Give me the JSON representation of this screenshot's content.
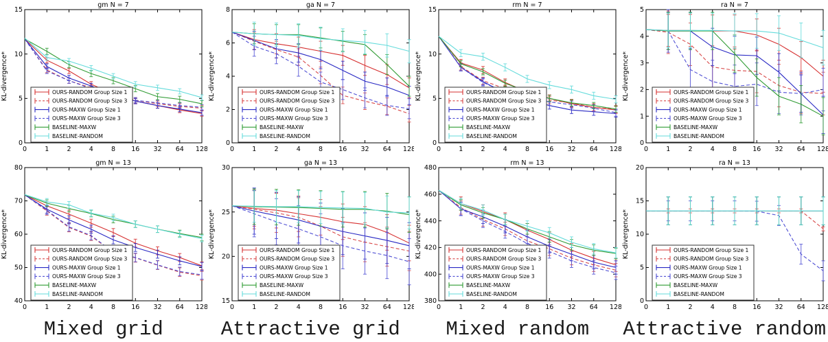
{
  "figure": {
    "ylabel": "KL-divergence*",
    "background": "#ffffff",
    "axis_color": "#000000"
  },
  "legend": {
    "position": "lower-left-inside",
    "entries": [
      {
        "label": "OURS-RANDOM Group Size 1",
        "color": "#d62f2f",
        "dash": false
      },
      {
        "label": "OURS-RANDOM Group Size 3",
        "color": "#d84848",
        "dash": true
      },
      {
        "label": "OURS-MAXW Group Size 1",
        "color": "#2727c3",
        "dash": false
      },
      {
        "label": "OURS-MAXW Group Size 3",
        "color": "#4f4fd4",
        "dash": true
      },
      {
        "label": "BASELINE-MAXW",
        "color": "#2f9b33",
        "dash": false
      },
      {
        "label": "BASELINE-RANDOM",
        "color": "#63dbdb",
        "dash": false
      }
    ]
  },
  "captions": [
    "Mixed grid",
    "Attractive grid",
    "Mixed random",
    "Attractive random"
  ],
  "chart_data": [
    {
      "id": "gm-n7",
      "type": "line",
      "title": "gm N = 7",
      "xlabel": "",
      "ylabel": "KL-divergence*",
      "x": [
        "0",
        "1",
        "2",
        "4",
        "8",
        "16",
        "32",
        "64",
        "128"
      ],
      "ylim": [
        0,
        15
      ],
      "yticks": [
        0,
        5,
        10,
        15
      ],
      "grid": false,
      "series": [
        {
          "name": "OURS-RANDOM Group Size 1",
          "err": 0.3,
          "values": [
            11.7,
            9.3,
            8.1,
            6.6,
            5.5,
            4.7,
            4.2,
            3.7,
            3.3
          ]
        },
        {
          "name": "OURS-RANDOM Group Size 3",
          "err": 0.3,
          "values": [
            11.7,
            8.2,
            7.0,
            6.2,
            5.4,
            4.8,
            4.4,
            4.1,
            3.9
          ]
        },
        {
          "name": "OURS-MAXW Group Size 1",
          "err": 0.3,
          "values": [
            11.7,
            8.6,
            7.3,
            6.4,
            5.5,
            4.7,
            4.2,
            3.8,
            3.4
          ]
        },
        {
          "name": "OURS-MAXW Group Size 3",
          "err": 0.3,
          "values": [
            11.7,
            8.1,
            7.0,
            6.1,
            5.4,
            4.8,
            4.5,
            4.2,
            4.0
          ]
        },
        {
          "name": "BASELINE-MAXW",
          "err": 0.35,
          "values": [
            11.7,
            10.3,
            8.8,
            7.8,
            7.0,
            6.1,
            5.2,
            4.9,
            4.4
          ]
        },
        {
          "name": "BASELINE-RANDOM",
          "err": 0.3,
          "values": [
            11.8,
            9.6,
            9.2,
            8.4,
            7.5,
            6.6,
            6.2,
            5.8,
            5.1
          ]
        }
      ]
    },
    {
      "id": "ga-n7",
      "type": "line",
      "title": "ga N = 7",
      "xlabel": "",
      "ylabel": "KL-divergence*",
      "x": [
        "0",
        "1",
        "2",
        "4",
        "8",
        "16",
        "32",
        "64",
        "128"
      ],
      "ylim": [
        0,
        8
      ],
      "yticks": [
        0,
        2,
        4,
        6,
        8
      ],
      "grid": false,
      "series": [
        {
          "name": "OURS-RANDOM Group Size 1",
          "err": 0.6,
          "values": [
            6.65,
            6.2,
            5.95,
            5.75,
            5.5,
            5.25,
            4.65,
            4.1,
            3.3
          ]
        },
        {
          "name": "OURS-RANDOM Group Size 3",
          "err": 0.5,
          "values": [
            6.65,
            6.1,
            5.6,
            5.15,
            4.05,
            2.85,
            2.5,
            2.2,
            1.75
          ]
        },
        {
          "name": "OURS-MAXW Group Size 1",
          "err": 0.55,
          "values": [
            6.65,
            6.15,
            5.65,
            5.4,
            5.0,
            4.35,
            3.7,
            3.35,
            2.85
          ]
        },
        {
          "name": "OURS-MAXW Group Size 3",
          "err": 0.6,
          "values": [
            6.65,
            5.8,
            5.35,
            4.6,
            3.65,
            3.2,
            2.7,
            2.25,
            2.05
          ]
        },
        {
          "name": "BASELINE-MAXW",
          "err": 0.6,
          "values": [
            6.65,
            6.55,
            6.5,
            6.5,
            6.3,
            6.1,
            5.9,
            4.7,
            3.4
          ]
        },
        {
          "name": "BASELINE-RANDOM",
          "err": 0.7,
          "values": [
            6.65,
            6.55,
            6.5,
            6.45,
            6.25,
            6.15,
            6.05,
            5.85,
            5.5
          ]
        }
      ]
    },
    {
      "id": "rm-n7",
      "type": "line",
      "title": "rm N = 7",
      "xlabel": "",
      "ylabel": "KL-divergence*",
      "x": [
        "0",
        "1",
        "2",
        "4",
        "8",
        "16",
        "32",
        "64",
        "128"
      ],
      "ylim": [
        0,
        15
      ],
      "yticks": [
        0,
        5,
        10,
        15
      ],
      "grid": false,
      "series": [
        {
          "name": "OURS-RANDOM Group Size 1",
          "err": 0.4,
          "values": [
            12.0,
            9.0,
            8.2,
            6.8,
            5.7,
            5.0,
            4.4,
            4.0,
            3.7
          ]
        },
        {
          "name": "OURS-RANDOM Group Size 3",
          "err": 0.4,
          "values": [
            12.0,
            8.6,
            7.0,
            6.1,
            5.5,
            4.8,
            4.5,
            4.0,
            3.8
          ]
        },
        {
          "name": "OURS-MAXW Group Size 1",
          "err": 0.4,
          "values": [
            12.0,
            8.5,
            6.9,
            5.6,
            4.9,
            4.2,
            3.7,
            3.5,
            3.3
          ]
        },
        {
          "name": "OURS-MAXW Group Size 3",
          "err": 0.4,
          "values": [
            12.0,
            8.5,
            6.8,
            5.7,
            5.3,
            4.6,
            4.3,
            3.9,
            3.4
          ]
        },
        {
          "name": "BASELINE-MAXW",
          "err": 0.35,
          "values": [
            12.0,
            8.9,
            8.0,
            6.7,
            5.8,
            5.0,
            4.5,
            4.2,
            3.8
          ]
        },
        {
          "name": "BASELINE-RANDOM",
          "err": 0.4,
          "values": [
            12.0,
            10.1,
            9.7,
            8.5,
            7.2,
            6.5,
            6.0,
            5.3,
            4.9
          ]
        }
      ]
    },
    {
      "id": "ra-n7",
      "type": "line",
      "title": "ra N = 7",
      "xlabel": "",
      "ylabel": "KL-divergence*",
      "x": [
        "0",
        "1",
        "2",
        "4",
        "8",
        "16",
        "32",
        "64",
        "128"
      ],
      "ylim": [
        0,
        5
      ],
      "yticks": [
        0,
        1,
        2,
        3,
        4,
        5
      ],
      "grid": false,
      "series": [
        {
          "name": "OURS-RANDOM Group Size 1",
          "err": 0.6,
          "values": [
            4.25,
            4.22,
            4.22,
            4.2,
            4.2,
            4.05,
            3.7,
            3.2,
            2.5
          ]
        },
        {
          "name": "OURS-RANDOM Group Size 3",
          "err": 0.8,
          "values": [
            4.25,
            4.15,
            3.7,
            2.85,
            2.72,
            2.68,
            2.15,
            1.9,
            1.85
          ]
        },
        {
          "name": "OURS-MAXW Group Size 1",
          "err": 0.7,
          "values": [
            4.25,
            4.2,
            4.2,
            3.6,
            3.3,
            3.27,
            2.65,
            1.85,
            1.05
          ]
        },
        {
          "name": "OURS-MAXW Group Size 3",
          "err": 0.8,
          "values": [
            4.25,
            4.2,
            2.75,
            2.3,
            2.12,
            2.2,
            1.9,
            1.85,
            2.0
          ]
        },
        {
          "name": "BASELINE-MAXW",
          "err": 0.7,
          "values": [
            4.25,
            4.2,
            4.2,
            4.2,
            3.35,
            2.45,
            1.75,
            1.45,
            1.0
          ]
        },
        {
          "name": "BASELINE-RANDOM",
          "err": 0.65,
          "values": [
            4.25,
            4.22,
            4.22,
            4.22,
            4.2,
            4.2,
            4.12,
            3.85,
            3.57
          ]
        }
      ]
    },
    {
      "id": "gm-n13",
      "type": "line",
      "title": "gm N = 13",
      "xlabel": "",
      "ylabel": "KL-divergence*",
      "x": [
        "0",
        "1",
        "2",
        "4",
        "8",
        "16",
        "32",
        "64",
        "128"
      ],
      "ylim": [
        40,
        80
      ],
      "yticks": [
        40,
        50,
        60,
        70,
        80
      ],
      "grid": false,
      "series": [
        {
          "name": "OURS-RANDOM Group Size 1",
          "err": 1.2,
          "values": [
            71.8,
            68.5,
            66.0,
            63.3,
            60.5,
            57.3,
            55.0,
            53.0,
            50.5
          ]
        },
        {
          "name": "OURS-RANDOM Group Size 3",
          "err": 1.3,
          "values": [
            71.8,
            67.0,
            62.0,
            59.4,
            54.5,
            52.9,
            50.7,
            48.6,
            47.5
          ]
        },
        {
          "name": "OURS-MAXW Group Size 1",
          "err": 1.2,
          "values": [
            71.8,
            67.5,
            64.3,
            61.5,
            58.3,
            56.0,
            54.0,
            52.0,
            50.3
          ]
        },
        {
          "name": "OURS-MAXW Group Size 3",
          "err": 1.3,
          "values": [
            71.8,
            67.2,
            62.2,
            59.6,
            54.6,
            53.0,
            50.8,
            48.8,
            47.8
          ]
        },
        {
          "name": "BASELINE-MAXW",
          "err": 1.0,
          "values": [
            71.8,
            69.3,
            67.7,
            66.2,
            64.4,
            63.0,
            61.5,
            60.2,
            59.0
          ]
        },
        {
          "name": "BASELINE-RANDOM",
          "err": 1.0,
          "values": [
            71.9,
            69.7,
            68.8,
            66.3,
            65.0,
            63.0,
            61.5,
            60.0,
            58.7
          ]
        }
      ]
    },
    {
      "id": "ga-n13",
      "type": "line",
      "title": "ga N = 13",
      "xlabel": "",
      "ylabel": "KL-divergence*",
      "x": [
        "0",
        "1",
        "2",
        "4",
        "8",
        "16",
        "32",
        "64",
        "128"
      ],
      "ylim": [
        15,
        30
      ],
      "yticks": [
        15,
        20,
        25,
        30
      ],
      "grid": false,
      "series": [
        {
          "name": "OURS-RANDOM Group Size 1",
          "err": 2.0,
          "values": [
            25.7,
            25.4,
            25.2,
            24.8,
            24.4,
            23.9,
            23.6,
            22.7,
            21.5
          ]
        },
        {
          "name": "OURS-RANDOM Group Size 3",
          "err": 2.2,
          "values": [
            25.7,
            25.3,
            24.9,
            24.4,
            23.4,
            22.2,
            21.6,
            21.1,
            20.6
          ]
        },
        {
          "name": "OURS-MAXW Group Size 1",
          "err": 2.6,
          "values": [
            25.7,
            25.1,
            24.6,
            24.1,
            23.4,
            22.8,
            22.3,
            21.8,
            21.2
          ]
        },
        {
          "name": "OURS-MAXW Group Size 3",
          "err": 2.6,
          "values": [
            25.7,
            24.8,
            23.9,
            23.1,
            22.2,
            21.2,
            20.6,
            20.1,
            19.4
          ]
        },
        {
          "name": "BASELINE-MAXW",
          "err": 2.0,
          "values": [
            25.7,
            25.6,
            25.55,
            25.5,
            25.4,
            25.3,
            25.3,
            25.1,
            24.7
          ]
        },
        {
          "name": "BASELINE-RANDOM",
          "err": 1.8,
          "values": [
            25.7,
            25.65,
            25.6,
            25.6,
            25.5,
            25.45,
            25.4,
            25.0,
            24.9
          ]
        }
      ]
    },
    {
      "id": "rm-n13",
      "type": "line",
      "title": "rm N = 13",
      "xlabel": "",
      "ylabel": "KL-divergence*",
      "x": [
        "0",
        "1",
        "2",
        "4",
        "8",
        "16",
        "32",
        "64",
        "128"
      ],
      "ylim": [
        380,
        480
      ],
      "yticks": [
        380,
        400,
        420,
        440,
        460,
        480
      ],
      "grid": false,
      "series": [
        {
          "name": "OURS-RANDOM Group Size 1",
          "err": 5,
          "values": [
            463,
            453,
            447,
            441,
            433,
            426,
            418,
            412,
            407
          ]
        },
        {
          "name": "OURS-RANDOM Group Size 3",
          "err": 5,
          "values": [
            463,
            450,
            441,
            434,
            425,
            419,
            412,
            407,
            403
          ]
        },
        {
          "name": "OURS-MAXW Group Size 1",
          "err": 5,
          "values": [
            463,
            449,
            443,
            436,
            428,
            421,
            415,
            409,
            405
          ]
        },
        {
          "name": "OURS-MAXW Group Size 3",
          "err": 5,
          "values": [
            463,
            449,
            440,
            432,
            423,
            417,
            410,
            405,
            401
          ]
        },
        {
          "name": "BASELINE-MAXW",
          "err": 4,
          "values": [
            463,
            452,
            446,
            441,
            434,
            428,
            422,
            418,
            415.5
          ]
        },
        {
          "name": "BASELINE-RANDOM",
          "err": 4,
          "values": [
            463,
            453,
            448,
            441,
            436,
            431,
            424,
            419,
            416
          ]
        }
      ]
    },
    {
      "id": "ra-n13",
      "type": "line",
      "title": "ra N = 13",
      "xlabel": "",
      "ylabel": "KL-divergence*",
      "x": [
        "0",
        "1",
        "2",
        "4",
        "8",
        "16",
        "32",
        "64",
        "128"
      ],
      "ylim": [
        0,
        20
      ],
      "yticks": [
        0,
        5,
        10,
        15,
        20
      ],
      "grid": false,
      "series": [
        {
          "name": "OURS-RANDOM Group Size 1",
          "err": 0,
          "values": [
            13.5,
            13.5,
            13.5,
            13.5,
            13.5,
            13.5,
            13.5,
            13.5,
            13.5
          ]
        },
        {
          "name": "OURS-RANDOM Group Size 3",
          "err": 0.3,
          "values": [
            13.5,
            13.5,
            13.5,
            13.5,
            13.5,
            13.5,
            13.5,
            13.5,
            10.8
          ]
        },
        {
          "name": "OURS-MAXW Group Size 1",
          "err": 2.1,
          "values": [
            13.5,
            13.5,
            13.5,
            13.5,
            13.5,
            13.5,
            13.5,
            13.5,
            13.5
          ]
        },
        {
          "name": "OURS-MAXW Group Size 3",
          "err": 1.5,
          "values": [
            13.5,
            13.5,
            13.5,
            13.5,
            13.5,
            13.45,
            12.8,
            7.0,
            4.5
          ]
        },
        {
          "name": "BASELINE-MAXW",
          "err": 2.1,
          "values": [
            13.5,
            13.5,
            13.5,
            13.5,
            13.5,
            13.5,
            13.5,
            13.5,
            13.5
          ]
        },
        {
          "name": "BASELINE-RANDOM",
          "err": 2.1,
          "values": [
            13.5,
            13.5,
            13.5,
            13.5,
            13.5,
            13.5,
            13.5,
            13.5,
            13.5
          ]
        }
      ]
    }
  ]
}
